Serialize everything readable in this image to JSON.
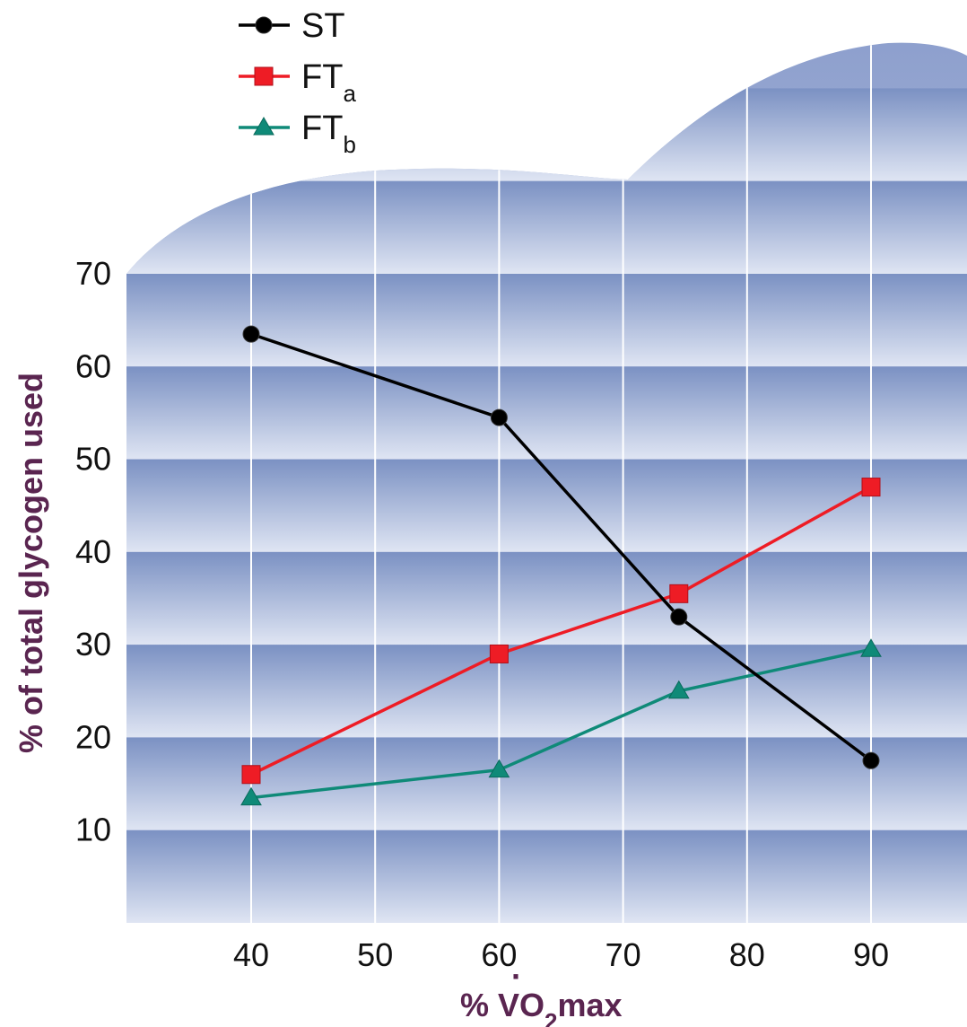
{
  "chart_data": {
    "type": "line",
    "xlabel": {
      "prefix": "% ",
      "symbol": "V",
      "dot": "·",
      "sub": "O",
      "subscript": "2",
      "suffix": "max"
    },
    "ylabel": "% of total glycogen used",
    "xlim": [
      30,
      97
    ],
    "ylim": [
      0,
      70
    ],
    "xticks": [
      40,
      50,
      60,
      70,
      80,
      90
    ],
    "yticks": [
      10,
      20,
      30,
      40,
      50,
      60,
      70
    ],
    "grid": true,
    "legend_position": "top-left",
    "series": [
      {
        "name": "ST",
        "subscript": "",
        "marker": "circle",
        "color": "#000000",
        "x": [
          40,
          60,
          74.5,
          90
        ],
        "y": [
          63.5,
          54.5,
          33,
          17.5
        ]
      },
      {
        "name": "FT",
        "subscript": "a",
        "marker": "square",
        "color": "#ee1c25",
        "x": [
          40,
          60,
          74.5,
          90
        ],
        "y": [
          16,
          29,
          35.5,
          47
        ]
      },
      {
        "name": "FT",
        "subscript": "b",
        "marker": "triangle",
        "color": "#0f8a78",
        "x": [
          40,
          60,
          74.5,
          90
        ],
        "y": [
          13.5,
          16.5,
          25,
          29.5
        ]
      }
    ],
    "colors": {
      "band_dark": "#7b91c3",
      "band_light": "#dfe5f3",
      "axis_title": "#5a2550"
    }
  }
}
